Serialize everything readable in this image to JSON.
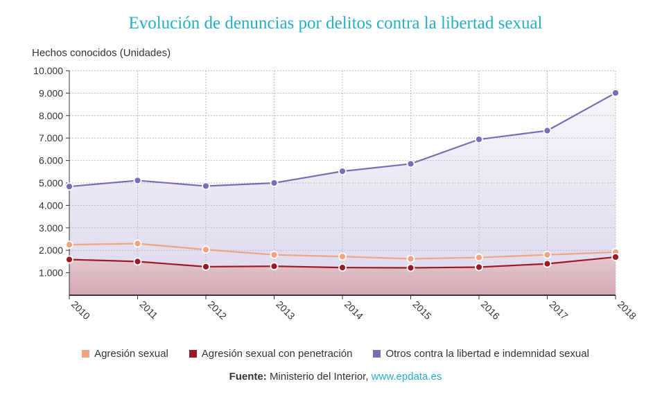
{
  "colors": {
    "title": "#27aec7",
    "agresion": "#f0a482",
    "penetracion": "#9c1a26",
    "otros": "#7b6cb3",
    "link": "#27aec7"
  },
  "source": {
    "label": "Fuente:",
    "text": "Ministerio del Interior,",
    "link": "www.epdata.es"
  },
  "chart_data": {
    "type": "area",
    "title": "Evolución de denuncias por delitos contra la libertad sexual",
    "ylabel": "Hechos conocidos (Unidades)",
    "xlabel": "",
    "categories": [
      "2010",
      "2011",
      "2012",
      "2013",
      "2014",
      "2015",
      "2016",
      "2017",
      "2018"
    ],
    "y_ticks": [
      "1.000",
      "2.000",
      "3.000",
      "4.000",
      "5.000",
      "6.000",
      "7.000",
      "8.000",
      "9.000",
      "10.000"
    ],
    "ylim": [
      0,
      10000
    ],
    "grid": true,
    "legend_position": "bottom",
    "series": [
      {
        "name": "Agresión sexual",
        "values": [
          2250,
          2300,
          2030,
          1800,
          1720,
          1620,
          1680,
          1800,
          1920
        ]
      },
      {
        "name": "Agresión sexual con penetración",
        "values": [
          1590,
          1500,
          1270,
          1290,
          1230,
          1220,
          1250,
          1400,
          1700
        ]
      },
      {
        "name": "Otros contra la libertad e indemnidad sexual",
        "values": [
          4840,
          5110,
          4860,
          5000,
          5520,
          5850,
          6940,
          7330,
          9010
        ]
      }
    ]
  }
}
